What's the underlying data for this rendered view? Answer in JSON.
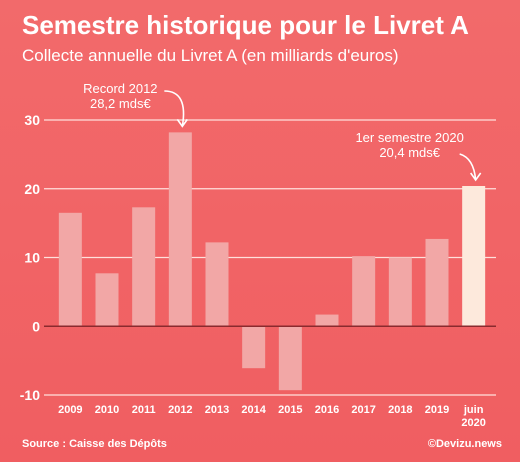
{
  "header": {
    "title": "Semestre historique pour le Livret A",
    "subtitle": "Collecte annuelle du Livret A (en milliards d'euros)"
  },
  "footer": {
    "source": "Source : Caisse des Dépôts",
    "credit": "©Devizu.news"
  },
  "colors": {
    "background": "#f26a6b",
    "bar": "#f2a7a6",
    "highlight_bar": "#fde9dc",
    "grid": "#ffe0dc",
    "text": "#ffffff"
  },
  "chart_data": {
    "type": "bar",
    "categories": [
      "2009",
      "2010",
      "2011",
      "2012",
      "2013",
      "2014",
      "2015",
      "2016",
      "2017",
      "2018",
      "2019",
      "juin 2020"
    ],
    "values": [
      16.5,
      7.7,
      17.3,
      28.2,
      12.2,
      -6.1,
      -9.3,
      1.7,
      10.2,
      10.0,
      12.7,
      20.4
    ],
    "highlight": "juin 2020",
    "yticks": [
      -10,
      0,
      10,
      20,
      30
    ],
    "ylim": [
      -10,
      30
    ],
    "grid": true,
    "title": "Semestre historique pour le Livret A",
    "subtitle": "Collecte annuelle du Livret A (en milliards d'euros)",
    "annotations": [
      {
        "category": "2012",
        "lines": [
          "Record 2012",
          "28,2 mds€"
        ]
      },
      {
        "category": "juin 2020",
        "lines": [
          "1er semestre 2020",
          "20,4 mds€"
        ]
      }
    ]
  }
}
